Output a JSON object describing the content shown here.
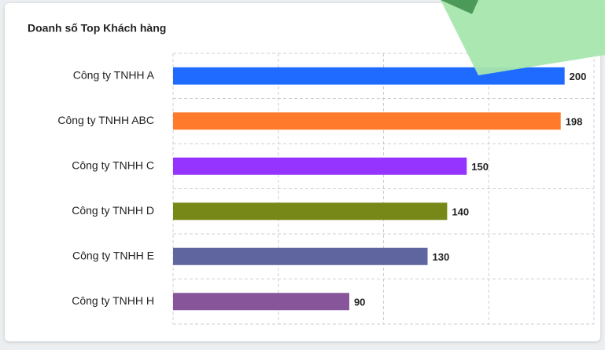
{
  "chart_data": {
    "type": "bar",
    "orientation": "horizontal",
    "title": "Doanh số Top Khách hàng",
    "categories": [
      "Công ty TNHH A",
      "Công ty TNHH ABC",
      "Công ty TNHH C",
      "Công ty TNHH D",
      "Công ty TNHH E",
      "Công ty TNHH H"
    ],
    "values": [
      200,
      198,
      150,
      140,
      130,
      90
    ],
    "colors": [
      "#1f6bff",
      "#ff7a2a",
      "#9533ff",
      "#778818",
      "#5f659f",
      "#87559a"
    ],
    "xlim": [
      0,
      215
    ],
    "xticks": [
      0,
      53.75,
      107.5,
      161.25,
      215
    ],
    "grid": true
  }
}
